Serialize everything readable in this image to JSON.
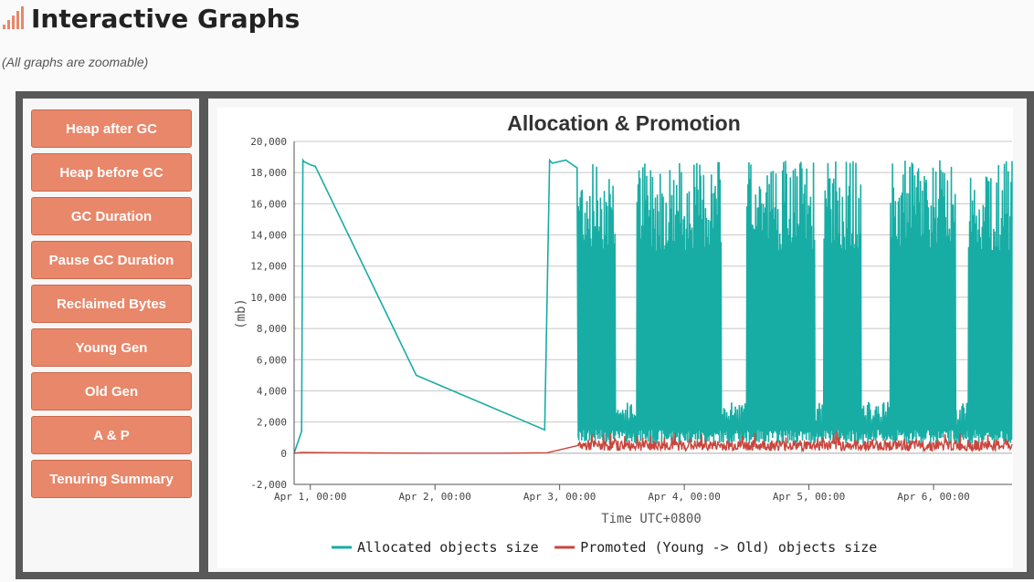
{
  "header": {
    "title": "Interactive Graphs",
    "subtitle": "(All graphs are zoomable)",
    "icon": "signal-bars-icon",
    "accent": "#e8876a"
  },
  "sidebar": {
    "items": [
      {
        "label": "Heap after GC"
      },
      {
        "label": "Heap before GC"
      },
      {
        "label": "GC Duration"
      },
      {
        "label": "Pause GC Duration"
      },
      {
        "label": "Reclaimed Bytes"
      },
      {
        "label": "Young Gen"
      },
      {
        "label": "Old Gen"
      },
      {
        "label": "A & P"
      },
      {
        "label": "Tenuring Summary"
      }
    ]
  },
  "chart_data": {
    "type": "line",
    "title": "Allocation & Promotion",
    "xlabel": "Time UTC+0800",
    "ylabel": "(mb)",
    "ylim": [
      -2000,
      20000
    ],
    "yticks": [
      -2000,
      0,
      2000,
      4000,
      6000,
      8000,
      10000,
      12000,
      14000,
      16000,
      18000,
      20000
    ],
    "ytick_labels": [
      "-2,000",
      "0",
      "2,000",
      "4,000",
      "6,000",
      "8,000",
      "10,000",
      "12,000",
      "14,000",
      "16,000",
      "18,000",
      "20,000"
    ],
    "xlim": [
      -0.13,
      5.63
    ],
    "xticks": [
      0,
      1,
      2,
      3,
      4,
      5
    ],
    "xtick_labels": [
      "Apr 1, 00:00",
      "Apr 2, 00:00",
      "Apr 3, 00:00",
      "Apr 4, 00:00",
      "Apr 5, 00:00",
      "Apr 6, 00:00"
    ],
    "grid": true,
    "legend_position": "bottom",
    "series": [
      {
        "name": "Allocated objects size",
        "color": "#17ada4",
        "x": [
          -0.13,
          -0.07,
          -0.06,
          -0.05,
          0.0,
          0.04,
          0.85,
          1.88,
          1.92,
          1.94,
          2.05,
          2.14,
          2.15,
          5.63
        ],
        "y": [
          0,
          1400,
          18800,
          18700,
          18500,
          18400,
          5000,
          1500,
          18800,
          18600,
          18800,
          18300,
          1000,
          14500
        ]
      },
      {
        "name": "Promoted (Young -> Old) objects size",
        "color": "#c9463d",
        "x": [
          -0.13,
          -0.07,
          0.5,
          1.0,
          1.5,
          1.9,
          2.15,
          5.63
        ],
        "y": [
          0,
          50,
          20,
          0,
          0,
          30,
          500,
          400
        ]
      }
    ]
  }
}
